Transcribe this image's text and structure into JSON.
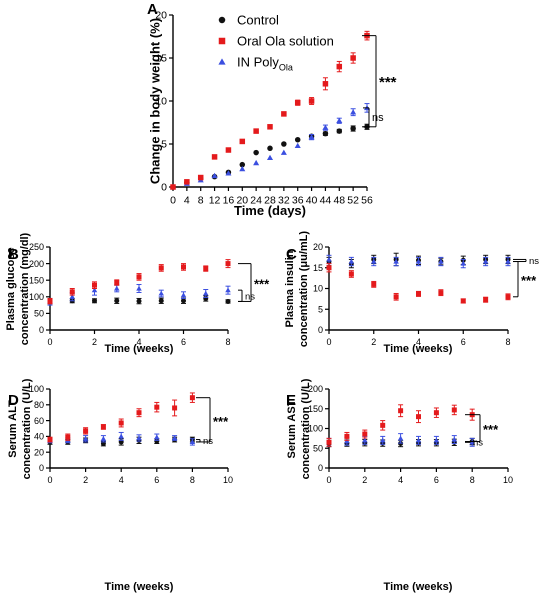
{
  "series_styles": [
    {
      "name": "Control",
      "color": "#111111",
      "marker": "circle"
    },
    {
      "name": "Oral Ola solution",
      "color": "#e41a1c",
      "marker": "square"
    },
    {
      "name": "IN Poly",
      "sub": "Ola",
      "color": "#3b4fe0",
      "marker": "triangle"
    }
  ],
  "chart_data": [
    {
      "panel": "A",
      "type": "scatter",
      "xlabel": "Time (days)",
      "ylabel": "Change in body weight (%)",
      "xlim": [
        0,
        56
      ],
      "ylim": [
        0,
        20
      ],
      "xticks": [
        0,
        4,
        8,
        12,
        16,
        20,
        24,
        28,
        32,
        36,
        40,
        44,
        48,
        52,
        56
      ],
      "yticks": [
        0,
        5,
        10,
        15,
        20
      ],
      "legend": "top-center",
      "series": [
        {
          "name": "Control",
          "x": [
            0,
            4,
            8,
            12,
            16,
            20,
            24,
            28,
            32,
            36,
            40,
            44,
            48,
            52,
            56
          ],
          "y": [
            0,
            0.5,
            1.0,
            1.2,
            1.7,
            2.6,
            4.0,
            4.5,
            5.0,
            5.5,
            5.9,
            6.2,
            6.5,
            6.8,
            7.0
          ],
          "err": [
            0,
            0,
            0,
            0,
            0,
            0,
            0,
            0,
            0,
            0,
            0,
            0.2,
            0.2,
            0.3,
            0.3
          ]
        },
        {
          "name": "Oral Ola solution",
          "x": [
            0,
            4,
            8,
            12,
            16,
            20,
            24,
            28,
            32,
            36,
            40,
            44,
            48,
            52,
            56
          ],
          "y": [
            0,
            0.6,
            1.1,
            3.5,
            4.3,
            5.3,
            6.5,
            7.0,
            8.5,
            9.8,
            10.0,
            12.0,
            14.0,
            15.0,
            17.6
          ],
          "err": [
            0,
            0,
            0,
            0,
            0,
            0,
            0,
            0,
            0,
            0.3,
            0.4,
            0.7,
            0.6,
            0.6,
            0.5
          ]
        },
        {
          "name": "IN Poly",
          "x": [
            0,
            4,
            8,
            12,
            16,
            20,
            24,
            28,
            32,
            36,
            40,
            44,
            48,
            52,
            56
          ],
          "y": [
            0,
            0.4,
            0.8,
            1.3,
            1.6,
            2.1,
            2.8,
            3.4,
            4.0,
            4.8,
            5.8,
            6.9,
            7.7,
            8.7,
            9.2
          ],
          "err": [
            0,
            0,
            0,
            0,
            0,
            0,
            0,
            0,
            0,
            0,
            0.3,
            0.3,
            0.3,
            0.4,
            0.5
          ]
        }
      ],
      "comparisons": [
        {
          "label": "***",
          "between": [
            "Oral Ola solution",
            "Control"
          ]
        },
        {
          "label": "ns",
          "between": [
            "IN Poly",
            "Control"
          ]
        }
      ]
    },
    {
      "panel": "B",
      "type": "scatter",
      "xlabel": "Time (weeks)",
      "ylabel": "Plasma glucose concentration (mg/dl)",
      "ylabel_lines": [
        "Plasma glucose",
        "concentration (mg/dl)"
      ],
      "xlim": [
        0,
        8
      ],
      "ylim": [
        0,
        250
      ],
      "xticks": [
        0,
        2,
        4,
        6,
        8
      ],
      "yticks": [
        0,
        50,
        100,
        150,
        200,
        250
      ],
      "series": [
        {
          "name": "Control",
          "x": [
            0,
            1,
            2,
            3,
            4,
            5,
            6,
            7,
            8
          ],
          "y": [
            85,
            88,
            88,
            88,
            87,
            88,
            88,
            95,
            86
          ],
          "err": [
            6,
            6,
            6,
            8,
            8,
            8,
            8,
            8,
            5
          ]
        },
        {
          "name": "Oral Ola solution",
          "x": [
            0,
            1,
            2,
            3,
            4,
            5,
            6,
            7,
            8
          ],
          "y": [
            87,
            115,
            135,
            143,
            160,
            187,
            190,
            185,
            200
          ],
          "err": [
            8,
            10,
            10,
            8,
            10,
            10,
            10,
            8,
            12
          ]
        },
        {
          "name": "IN Poly",
          "x": [
            0,
            1,
            2,
            3,
            4,
            5,
            6,
            7,
            8
          ],
          "y": [
            85,
            100,
            120,
            125,
            125,
            110,
            105,
            110,
            120
          ],
          "err": [
            10,
            12,
            15,
            10,
            12,
            10,
            10,
            12,
            12
          ]
        }
      ],
      "comparisons": [
        {
          "label": "***",
          "between": [
            "Oral Ola solution",
            "Control"
          ]
        },
        {
          "label": "ns",
          "between": [
            "IN Poly",
            "Control"
          ]
        }
      ]
    },
    {
      "panel": "C",
      "type": "scatter",
      "xlabel": "Time (weeks)",
      "ylabel": "Plasma insulin concentration (μu/mL)",
      "ylabel_lines": [
        "Plasma insulin",
        "concentration (μu/mL)"
      ],
      "xlim": [
        0,
        8
      ],
      "ylim": [
        0,
        20
      ],
      "xticks": [
        0,
        2,
        4,
        6,
        8
      ],
      "yticks": [
        0,
        5,
        10,
        15,
        20
      ],
      "series": [
        {
          "name": "Control",
          "x": [
            0,
            1,
            2,
            3,
            4,
            5,
            6,
            7,
            8
          ],
          "y": [
            16.5,
            16.0,
            17.0,
            17.0,
            16.8,
            16.5,
            16.8,
            17.0,
            17.0
          ],
          "err": [
            1.0,
            1.0,
            1.0,
            1.5,
            1.0,
            0.8,
            1.0,
            1.0,
            1.0
          ]
        },
        {
          "name": "Oral Ola solution",
          "x": [
            0,
            1,
            2,
            3,
            4,
            5,
            6,
            7,
            8
          ],
          "y": [
            15.0,
            13.5,
            11.0,
            8.0,
            8.7,
            9.0,
            7.0,
            7.3,
            8.0
          ],
          "err": [
            1.0,
            0.8,
            0.7,
            0.8,
            0.6,
            0.7,
            0.5,
            0.6,
            0.7
          ]
        },
        {
          "name": "IN Poly",
          "x": [
            0,
            1,
            2,
            3,
            4,
            5,
            6,
            7,
            8
          ],
          "y": [
            17.0,
            16.5,
            16.5,
            16.5,
            16.5,
            16.5,
            16.0,
            16.5,
            16.5
          ],
          "err": [
            1.0,
            1.0,
            1.0,
            1.0,
            1.0,
            1.0,
            1.0,
            1.0,
            1.0
          ]
        }
      ],
      "comparisons": [
        {
          "label": "ns",
          "between": [
            "Control",
            "IN Poly"
          ]
        },
        {
          "label": "***",
          "between": [
            "IN Poly",
            "Oral Ola solution"
          ]
        }
      ]
    },
    {
      "panel": "D",
      "type": "scatter",
      "xlabel": "Time (weeks)",
      "ylabel": "Serum ALT concentration (U/L)",
      "ylabel_lines": [
        "Serum ALT",
        "concentration (U/L)"
      ],
      "xlim": [
        0,
        10
      ],
      "ylim": [
        0,
        100
      ],
      "xticks": [
        0,
        2,
        4,
        6,
        8,
        10
      ],
      "yticks": [
        0,
        20,
        40,
        60,
        80,
        100
      ],
      "series": [
        {
          "name": "Control",
          "x": [
            0,
            1,
            2,
            3,
            4,
            5,
            6,
            7,
            8
          ],
          "y": [
            33,
            33,
            35,
            31,
            33,
            35,
            34,
            36,
            36
          ],
          "err": [
            3,
            3,
            3,
            3,
            4,
            4,
            3,
            3,
            3
          ]
        },
        {
          "name": "Oral Ola solution",
          "x": [
            0,
            1,
            2,
            3,
            4,
            5,
            6,
            7,
            8
          ],
          "y": [
            36,
            39,
            47,
            52,
            57,
            70,
            77,
            76,
            89
          ],
          "err": [
            3,
            4,
            4,
            3,
            5,
            5,
            6,
            10,
            6
          ]
        },
        {
          "name": "IN Poly",
          "x": [
            0,
            1,
            2,
            3,
            4,
            5,
            6,
            7,
            8
          ],
          "y": [
            35,
            35,
            37,
            37,
            40,
            38,
            39,
            38,
            33
          ],
          "err": [
            3,
            3,
            4,
            4,
            5,
            4,
            4,
            3,
            4
          ]
        }
      ],
      "comparisons": [
        {
          "label": "***",
          "between": [
            "Oral Ola solution",
            "IN Poly"
          ]
        },
        {
          "label": "ns",
          "between": [
            "Control",
            "IN Poly"
          ]
        }
      ]
    },
    {
      "panel": "E",
      "type": "scatter",
      "xlabel": "Time (weeks)",
      "ylabel": "Serum AST concentration (U/L)",
      "ylabel_lines": [
        "Serum AST",
        "concentration (U/L)"
      ],
      "xlim": [
        0,
        10
      ],
      "ylim": [
        0,
        200
      ],
      "xticks": [
        0,
        2,
        4,
        6,
        8,
        10
      ],
      "yticks": [
        0,
        50,
        100,
        150,
        200
      ],
      "series": [
        {
          "name": "Control",
          "x": [
            0,
            1,
            2,
            3,
            4,
            5,
            6,
            7,
            8
          ],
          "y": [
            62,
            63,
            64,
            63,
            62,
            64,
            64,
            65,
            67
          ],
          "err": [
            8,
            8,
            8,
            8,
            8,
            8,
            8,
            8,
            8
          ]
        },
        {
          "name": "Oral Ola solution",
          "x": [
            0,
            1,
            2,
            3,
            4,
            5,
            6,
            7,
            8
          ],
          "y": [
            65,
            80,
            86,
            108,
            145,
            130,
            140,
            147,
            135
          ],
          "err": [
            10,
            10,
            10,
            12,
            15,
            15,
            12,
            12,
            14
          ]
        },
        {
          "name": "IN Poly",
          "x": [
            0,
            1,
            2,
            3,
            4,
            5,
            6,
            7,
            8
          ],
          "y": [
            65,
            68,
            70,
            70,
            75,
            70,
            70,
            72,
            65
          ],
          "err": [
            10,
            10,
            10,
            10,
            12,
            10,
            10,
            10,
            10
          ]
        }
      ],
      "comparisons": [
        {
          "label": "***",
          "between": [
            "Oral Ola solution",
            "Control"
          ]
        },
        {
          "label": "ns",
          "between": [
            "IN Poly",
            "Control"
          ]
        }
      ]
    }
  ]
}
